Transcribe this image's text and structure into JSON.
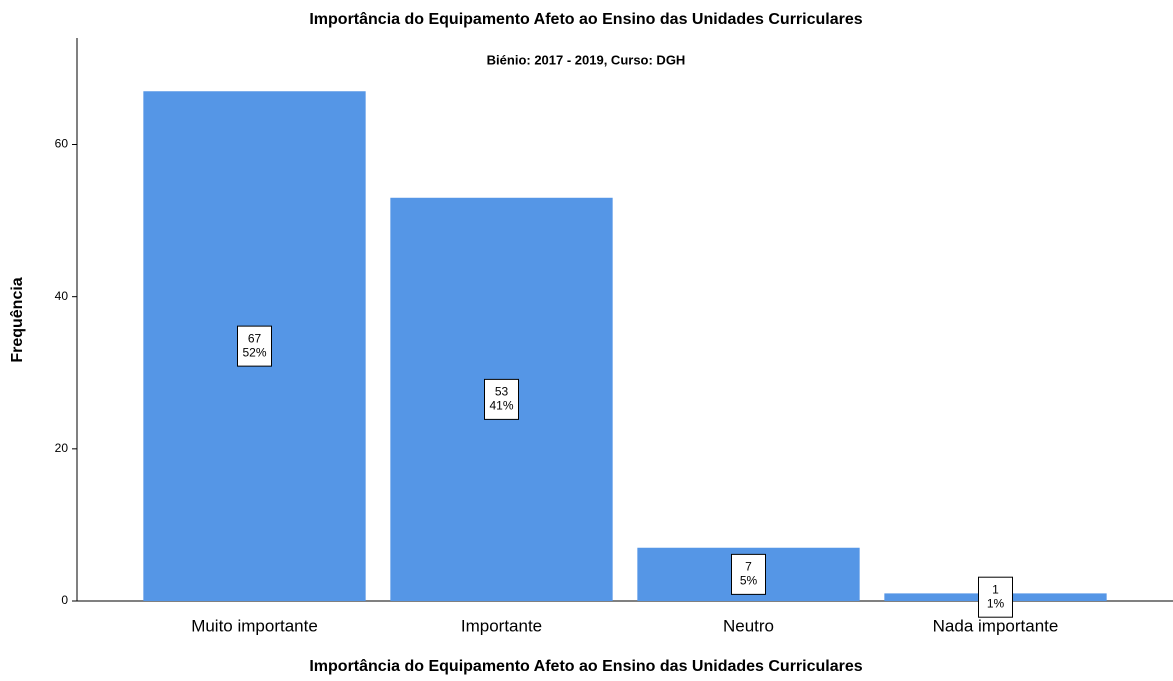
{
  "chart_data": {
    "type": "bar",
    "title": "Importância do Equipamento Afeto ao Ensino das Unidades Curriculares",
    "subtitle": "Biénio: 2017 - 2019, Curso: DGH",
    "xlabel": "Importância do Equipamento Afeto ao Ensino das Unidades Curriculares",
    "ylabel": "Frequência",
    "categories": [
      "Muito importante",
      "Importante",
      "Neutro",
      "Nada importante"
    ],
    "values": [
      67,
      53,
      7,
      1
    ],
    "percent_labels": [
      "52%",
      "41%",
      "5%",
      "1%"
    ],
    "color": "#5596e6",
    "ylim": [
      0,
      74
    ],
    "yticks": [
      0,
      20,
      40,
      60
    ],
    "grid": false
  }
}
